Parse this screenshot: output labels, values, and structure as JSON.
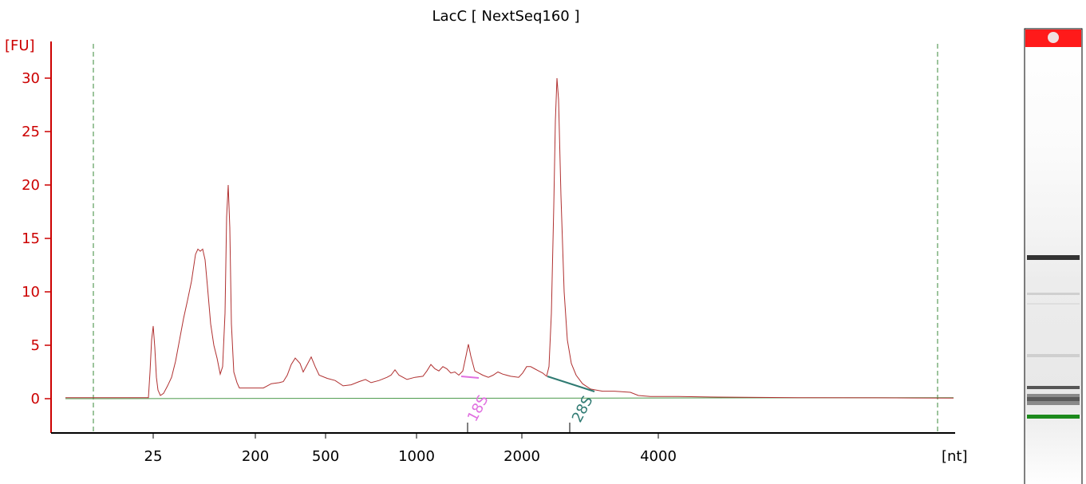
{
  "chart_data": {
    "type": "line",
    "title": "LacC  [ NextSeq160 ]",
    "ylabel": "[FU]",
    "xlabel": "[nt]",
    "ylim": [
      -3,
      33
    ],
    "y_ticks": [
      0,
      5,
      10,
      15,
      20,
      25,
      30
    ],
    "x_ticks": [
      "25",
      "200",
      "500",
      "1000",
      "2000",
      "4000"
    ],
    "grid": false,
    "series": [
      {
        "color": "#b03030",
        "values": [
          [
            82,
            0.1
          ],
          [
            186,
            0.1
          ],
          [
            188,
            2.5
          ],
          [
            190,
            5.5
          ],
          [
            192,
            6.8
          ],
          [
            194,
            4.8
          ],
          [
            196,
            2.0
          ],
          [
            198,
            0.8
          ],
          [
            201,
            0.3
          ],
          [
            205,
            0.5
          ],
          [
            210,
            1.2
          ],
          [
            215,
            2.0
          ],
          [
            220,
            3.5
          ],
          [
            225,
            5.5
          ],
          [
            230,
            7.5
          ],
          [
            235,
            9.2
          ],
          [
            240,
            11.0
          ],
          [
            245,
            13.5
          ],
          [
            248,
            14.0
          ],
          [
            251,
            13.8
          ],
          [
            254,
            14.0
          ],
          [
            257,
            13.0
          ],
          [
            260,
            10.5
          ],
          [
            264,
            7.0
          ],
          [
            268,
            5.0
          ],
          [
            272,
            3.8
          ],
          [
            276,
            2.3
          ],
          [
            279,
            3.0
          ],
          [
            282,
            8.0
          ],
          [
            284,
            17.0
          ],
          [
            286,
            20.0
          ],
          [
            288,
            16.0
          ],
          [
            290,
            7.0
          ],
          [
            293,
            2.5
          ],
          [
            297,
            1.5
          ],
          [
            300,
            1.0
          ],
          [
            315,
            1.0
          ],
          [
            330,
            1.0
          ],
          [
            335,
            1.2
          ],
          [
            340,
            1.4
          ],
          [
            350,
            1.5
          ],
          [
            355,
            1.6
          ],
          [
            360,
            2.2
          ],
          [
            365,
            3.2
          ],
          [
            370,
            3.8
          ],
          [
            376,
            3.3
          ],
          [
            380,
            2.5
          ],
          [
            385,
            3.2
          ],
          [
            390,
            3.9
          ],
          [
            395,
            3.0
          ],
          [
            400,
            2.2
          ],
          [
            410,
            1.9
          ],
          [
            420,
            1.7
          ],
          [
            430,
            1.2
          ],
          [
            440,
            1.3
          ],
          [
            450,
            1.6
          ],
          [
            458,
            1.8
          ],
          [
            465,
            1.5
          ],
          [
            475,
            1.7
          ],
          [
            485,
            2.0
          ],
          [
            490,
            2.2
          ],
          [
            495,
            2.7
          ],
          [
            500,
            2.2
          ],
          [
            510,
            1.8
          ],
          [
            520,
            2.0
          ],
          [
            530,
            2.1
          ],
          [
            535,
            2.6
          ],
          [
            540,
            3.2
          ],
          [
            545,
            2.8
          ],
          [
            550,
            2.6
          ],
          [
            555,
            3.0
          ],
          [
            560,
            2.8
          ],
          [
            565,
            2.4
          ],
          [
            570,
            2.5
          ],
          [
            575,
            2.2
          ],
          [
            580,
            2.6
          ],
          [
            584,
            4.0
          ],
          [
            587,
            5.1
          ],
          [
            590,
            4.0
          ],
          [
            595,
            2.6
          ],
          [
            600,
            2.4
          ],
          [
            605,
            2.2
          ],
          [
            612,
            2.0
          ],
          [
            618,
            2.2
          ],
          [
            624,
            2.5
          ],
          [
            630,
            2.3
          ],
          [
            640,
            2.1
          ],
          [
            650,
            2.0
          ],
          [
            655,
            2.4
          ],
          [
            660,
            3.0
          ],
          [
            665,
            3.0
          ],
          [
            670,
            2.8
          ],
          [
            675,
            2.6
          ],
          [
            680,
            2.4
          ],
          [
            685,
            2.1
          ],
          [
            688,
            3.0
          ],
          [
            691,
            8.0
          ],
          [
            694,
            18.0
          ],
          [
            696,
            26.0
          ],
          [
            698,
            30.0
          ],
          [
            700,
            28.0
          ],
          [
            703,
            19.0
          ],
          [
            707,
            10.0
          ],
          [
            711,
            5.5
          ],
          [
            716,
            3.3
          ],
          [
            722,
            2.2
          ],
          [
            730,
            1.4
          ],
          [
            740,
            0.9
          ],
          [
            755,
            0.7
          ],
          [
            770,
            0.7
          ],
          [
            790,
            0.6
          ],
          [
            800,
            0.3
          ],
          [
            815,
            0.2
          ],
          [
            850,
            0.2
          ],
          [
            900,
            0.15
          ],
          [
            1000,
            0.1
          ],
          [
            1100,
            0.08
          ],
          [
            1195,
            0.05
          ]
        ]
      },
      {
        "color": "#4c9a4c",
        "values": [
          [
            82,
            0.0
          ],
          [
            1195,
            0.1
          ]
        ]
      }
    ],
    "markers": [
      {
        "label": "18S",
        "color": "#e070e0"
      },
      {
        "label": "28S",
        "color": "#2f7a72"
      }
    ]
  }
}
